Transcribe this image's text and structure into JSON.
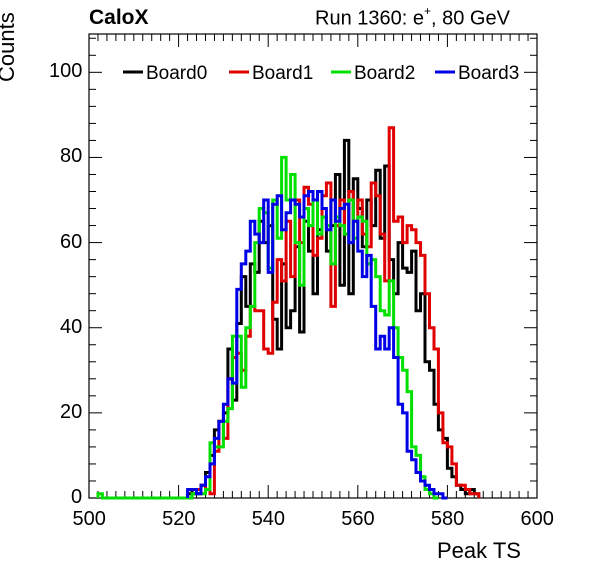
{
  "titles": {
    "left": "CaloX",
    "right_prefix": "Run 1360: e",
    "right_sup": "+",
    "right_suffix": ", 80 GeV"
  },
  "chart_data": {
    "type": "line",
    "title": "",
    "xlabel": "Peak TS",
    "ylabel": "Counts",
    "xlim": [
      500,
      600
    ],
    "ylim": [
      0,
      109
    ],
    "xticks": [
      "500",
      "520",
      "540",
      "560",
      "580",
      "600"
    ],
    "yticks": [
      "0",
      "20",
      "40",
      "60",
      "80",
      "100"
    ],
    "grid": false,
    "legend_position": "top-center",
    "bin_width": 1,
    "series": [
      {
        "name": "Board0",
        "color": "#000000",
        "x_start": 522,
        "values": [
          1,
          2,
          1,
          3,
          6,
          10,
          16,
          18,
          20,
          35,
          23,
          41,
          52,
          45,
          55,
          53,
          65,
          60,
          64,
          42,
          35,
          55,
          40,
          44,
          59,
          39,
          65,
          58,
          48,
          63,
          66,
          58,
          64,
          76,
          50,
          84,
          48,
          75,
          68,
          59,
          70,
          64,
          77,
          61,
          78,
          56,
          48,
          60,
          54,
          53,
          58,
          44,
          48,
          32,
          30,
          22,
          16,
          14,
          7,
          5,
          3,
          2,
          1,
          2,
          1
        ]
      },
      {
        "name": "Board1",
        "color": "#e00000",
        "x_start": 523,
        "values": [
          1,
          2,
          3,
          2,
          1,
          11,
          18,
          14,
          28,
          33,
          34,
          30,
          38,
          45,
          44,
          44,
          35,
          34,
          46,
          56,
          51,
          65,
          52,
          70,
          60,
          73,
          69,
          57,
          61,
          71,
          74,
          45,
          64,
          70,
          62,
          72,
          65,
          70,
          62,
          59,
          74,
          71,
          62,
          51,
          87,
          65,
          66,
          60,
          64,
          63,
          60,
          57,
          48,
          40,
          35,
          20,
          13,
          12,
          8,
          3,
          3,
          2,
          1,
          1
        ]
      },
      {
        "name": "Board2",
        "color": "#00e000",
        "x_start": 502,
        "values": [
          1,
          0,
          0,
          0,
          0,
          0,
          0,
          0,
          0,
          0,
          0,
          0,
          0,
          0,
          0,
          0,
          0,
          0,
          0,
          0,
          0,
          1,
          1,
          1,
          2,
          13,
          12,
          12,
          18,
          21,
          38,
          38,
          26,
          40,
          45,
          60,
          68,
          67,
          54,
          70,
          61,
          80,
          70,
          76,
          60,
          50,
          68,
          64,
          70,
          62,
          66,
          64,
          55,
          66,
          64,
          62,
          70,
          61,
          66,
          65,
          55,
          56,
          52,
          44,
          43,
          51,
          40,
          33,
          30,
          25,
          12,
          10,
          5,
          2,
          1,
          0
        ]
      },
      {
        "name": "Board3",
        "color": "#0000e6",
        "x_start": 522,
        "values": [
          2,
          2,
          1,
          3,
          5,
          8,
          14,
          18,
          22,
          28,
          27,
          49,
          55,
          58,
          65,
          62,
          60,
          70,
          53,
          69,
          71,
          63,
          67,
          70,
          69,
          66,
          71,
          72,
          70,
          72,
          68,
          63,
          70,
          65,
          68,
          69,
          60,
          65,
          58,
          52,
          57,
          45,
          35,
          38,
          35,
          40,
          33,
          22,
          20,
          11,
          9,
          6,
          4,
          3,
          2,
          1,
          1,
          0
        ]
      }
    ]
  }
}
